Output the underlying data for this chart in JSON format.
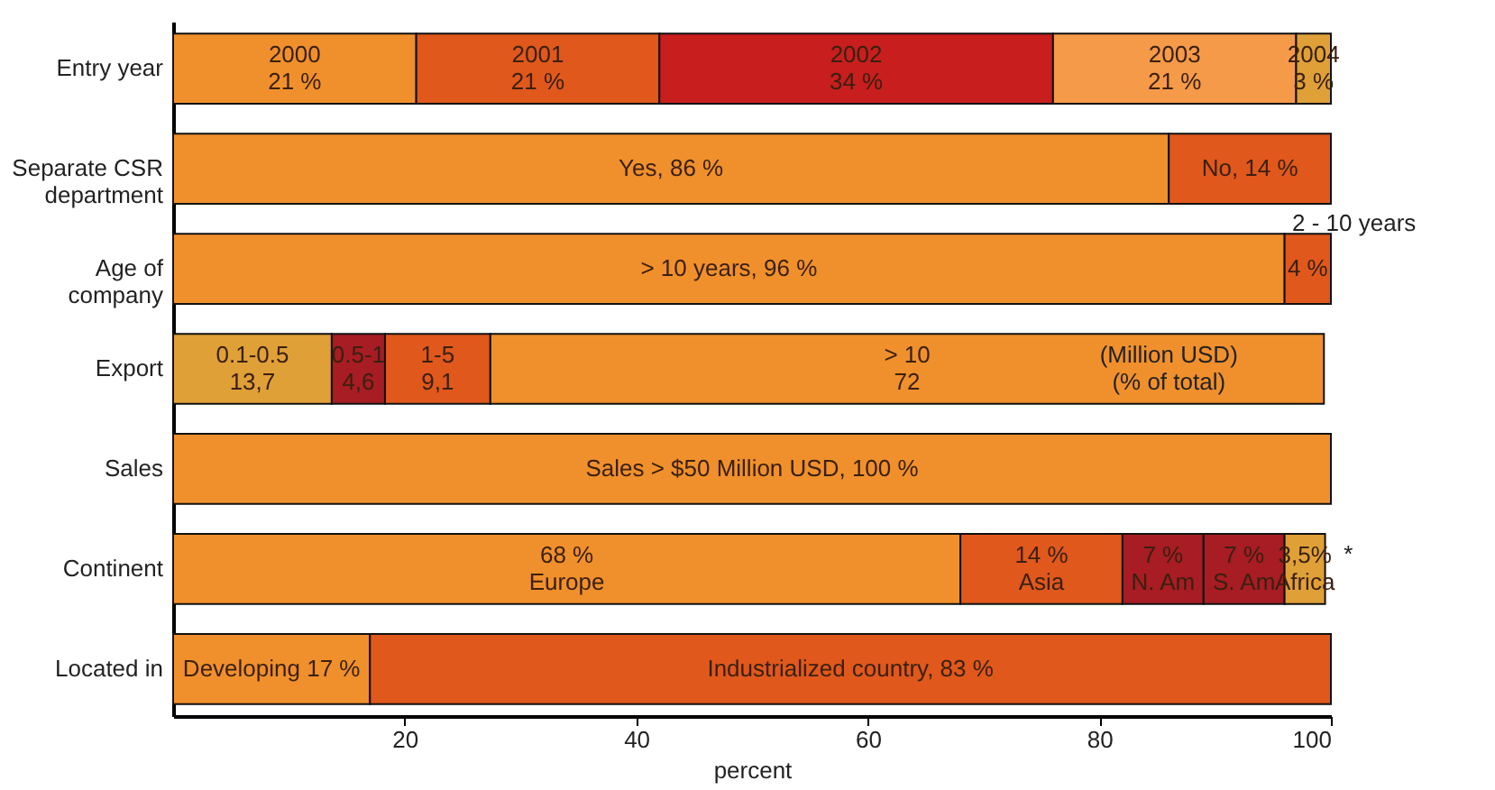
{
  "chart_data": {
    "type": "bar",
    "orientation": "horizontal",
    "stacked": true,
    "xlabel": "percent",
    "categories": [
      "Entry year",
      "Separate CSR\ndepartment",
      "Age of\ncompany",
      "Export",
      "Sales",
      "Continent",
      "Located in"
    ],
    "series": [
      {
        "colors": [
          "#f0902c",
          "#f0902c",
          "#f0902c",
          "#e0a038",
          "#f0902c",
          "#f0902c",
          "#f0902c"
        ],
        "values": [
          21,
          86,
          96,
          13.7,
          100,
          68,
          17
        ],
        "value_labels": [
          "2000\n21 %",
          "Yes, 86 %",
          "> 10 years, 96 %",
          "0.1-0.5\n13,7",
          "Sales > $50 Million USD, 100 %",
          "68 %\nEurope",
          "Developing 17 %"
        ]
      },
      {
        "colors": [
          "#e0581c",
          "#e0581c",
          "#e0581c",
          "#a81c24",
          null,
          "#e0581c",
          "#e0581c"
        ],
        "values": [
          21,
          14,
          4,
          4.6,
          null,
          14,
          83
        ],
        "value_labels": [
          "2001\n21 %",
          "No, 14 %",
          "4 %",
          "0.5-1\n4,6",
          null,
          "14 %\nAsia",
          "Industrialized country, 83 %"
        ]
      },
      {
        "colors": [
          "#c81e1e",
          null,
          null,
          "#e0581c",
          null,
          "#a81c24",
          null
        ],
        "values": [
          34,
          null,
          null,
          9.1,
          null,
          7,
          null
        ],
        "value_labels": [
          "2002\n34 %",
          null,
          null,
          "1-5\n9,1",
          null,
          "7 %\nN. Am",
          null
        ]
      },
      {
        "colors": [
          "#f59a48",
          null,
          null,
          "#f0902c",
          null,
          "#a81c24",
          null
        ],
        "values": [
          21,
          null,
          null,
          72,
          null,
          7,
          null
        ],
        "value_labels": [
          "2003\n21 %",
          null,
          null,
          "> 10\n72",
          null,
          "7 %\nS. Am",
          null
        ]
      },
      {
        "colors": [
          "#e0a038",
          null,
          null,
          null,
          null,
          "#e0a038",
          null
        ],
        "values": [
          3,
          null,
          null,
          null,
          null,
          3.5,
          null
        ],
        "value_labels": [
          "2004\n3 %",
          null,
          null,
          null,
          null,
          "3,5%\nAfrica",
          null
        ]
      }
    ],
    "annotations": [
      "2 - 10 years",
      "(Million USD)\n(% of total)",
      "*"
    ],
    "xlim": [
      0,
      100
    ],
    "xticks": [
      20,
      40,
      60,
      80,
      100
    ],
    "grid": false
  }
}
